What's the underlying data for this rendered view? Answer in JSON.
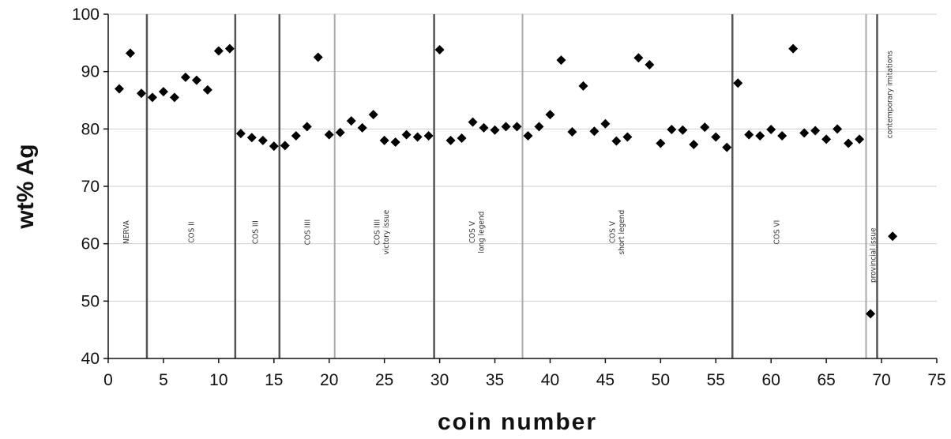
{
  "chart_data": {
    "type": "scatter",
    "title": "",
    "xlabel": "coin number",
    "ylabel": "wt% Ag",
    "xlim": [
      0,
      75
    ],
    "ylim": [
      40,
      100
    ],
    "x_ticks": [
      0,
      5,
      10,
      15,
      20,
      25,
      30,
      35,
      40,
      45,
      50,
      55,
      60,
      65,
      70,
      75
    ],
    "y_ticks": [
      40,
      50,
      60,
      70,
      80,
      90,
      100
    ],
    "grid": "horizontal",
    "marker": "diamond",
    "colors": {
      "marker": "#000000",
      "grid": "#cfcfcf",
      "divider_dark": "#555555",
      "divider_light": "#aaaaaa"
    },
    "series": [
      {
        "points": [
          [
            1,
            87
          ],
          [
            2,
            93.2
          ],
          [
            3,
            86.2
          ],
          [
            4,
            85.5
          ],
          [
            5,
            86.5
          ],
          [
            6,
            85.5
          ],
          [
            7,
            89
          ],
          [
            8,
            88.5
          ],
          [
            9,
            86.8
          ],
          [
            10,
            93.6
          ],
          [
            11,
            94
          ],
          [
            12,
            79.2
          ],
          [
            13,
            78.5
          ],
          [
            14,
            78
          ],
          [
            15,
            77
          ],
          [
            16,
            77.1
          ],
          [
            17,
            78.8
          ],
          [
            18,
            80.4
          ],
          [
            19,
            92.5
          ],
          [
            20,
            79
          ],
          [
            21,
            79.4
          ],
          [
            22,
            81.4
          ],
          [
            23,
            80.2
          ],
          [
            24,
            82.5
          ],
          [
            25,
            78
          ],
          [
            26,
            77.7
          ],
          [
            27,
            79
          ],
          [
            28,
            78.6
          ],
          [
            29,
            78.8
          ],
          [
            30,
            93.8
          ],
          [
            31,
            78
          ],
          [
            32,
            78.4
          ],
          [
            33,
            81.2
          ],
          [
            34,
            80.2
          ],
          [
            35,
            79.8
          ],
          [
            36,
            80.4
          ],
          [
            37,
            80.4
          ],
          [
            38,
            78.8
          ],
          [
            39,
            80.4
          ],
          [
            40,
            82.5
          ],
          [
            41,
            92
          ],
          [
            42,
            79.5
          ],
          [
            43,
            87.5
          ],
          [
            44,
            79.6
          ],
          [
            45,
            80.9
          ],
          [
            46,
            77.9
          ],
          [
            47,
            78.6
          ],
          [
            48,
            92.4
          ],
          [
            49,
            91.2
          ],
          [
            50,
            77.5
          ],
          [
            51,
            79.9
          ],
          [
            52,
            79.8
          ],
          [
            53,
            77.3
          ],
          [
            54,
            80.3
          ],
          [
            55,
            78.6
          ],
          [
            56,
            76.8
          ],
          [
            57,
            88
          ],
          [
            58,
            79
          ],
          [
            59,
            78.8
          ],
          [
            60,
            79.9
          ],
          [
            61,
            78.8
          ],
          [
            62,
            94
          ],
          [
            63,
            79.3
          ],
          [
            64,
            79.7
          ],
          [
            65,
            78.2
          ],
          [
            66,
            80
          ],
          [
            67,
            77.5
          ],
          [
            68,
            78.2
          ],
          [
            69,
            47.8
          ],
          [
            71,
            61.3
          ]
        ]
      }
    ],
    "dividers": [
      {
        "x": 3.5,
        "style": "dark"
      },
      {
        "x": 11.5,
        "style": "dark"
      },
      {
        "x": 15.5,
        "style": "dark"
      },
      {
        "x": 20.5,
        "style": "light"
      },
      {
        "x": 29.5,
        "style": "dark"
      },
      {
        "x": 37.5,
        "style": "light"
      },
      {
        "x": 56.5,
        "style": "dark"
      },
      {
        "x": 68.6,
        "style": "light"
      },
      {
        "x": 69.6,
        "style": "dark"
      }
    ],
    "annotations": [
      {
        "text": "NERVA",
        "x": 1.6,
        "y": 62
      },
      {
        "text": "COS II",
        "x": 7.5,
        "y": 62
      },
      {
        "text": "COS III",
        "x": 13.3,
        "y": 62
      },
      {
        "text": "COS IIII",
        "x": 18,
        "y": 62
      },
      {
        "lines": [
          "COS IIII",
          "victory issue"
        ],
        "x": 24.7,
        "y": 62
      },
      {
        "lines": [
          "COS V",
          "long legend"
        ],
        "x": 33.3,
        "y": 62
      },
      {
        "lines": [
          "COS V",
          "short legend"
        ],
        "x": 46,
        "y": 62
      },
      {
        "text": "COS VI",
        "x": 60.5,
        "y": 62
      },
      {
        "text": "provincial issue",
        "x": 69.2,
        "y": 58
      },
      {
        "text": "contemporary imitations",
        "x": 70.7,
        "y": 86
      }
    ]
  }
}
